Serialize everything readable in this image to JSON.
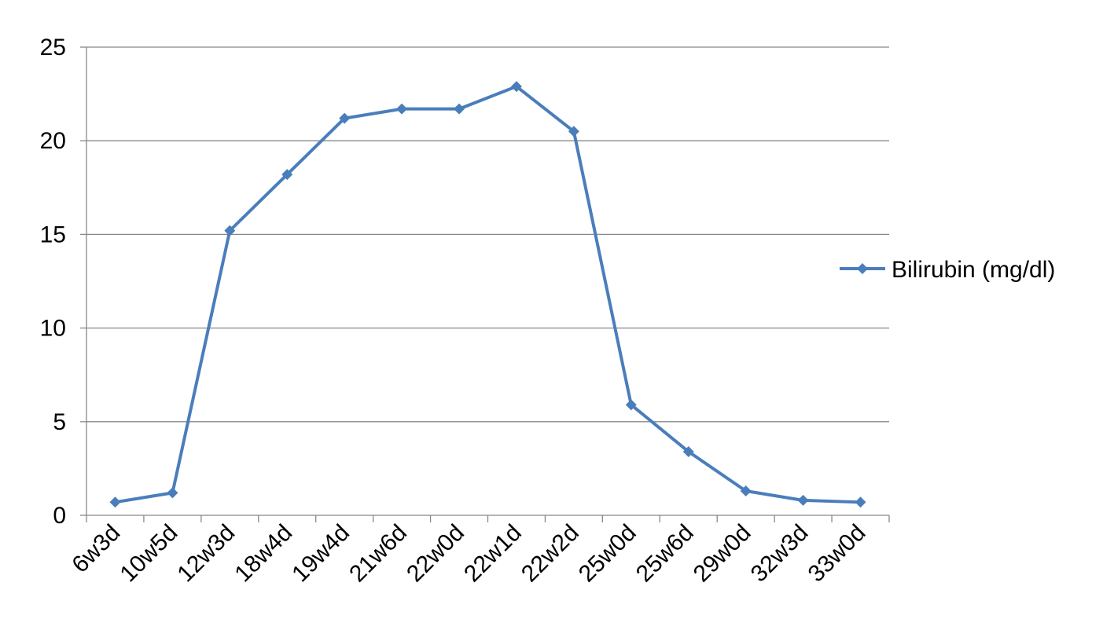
{
  "chart_data": {
    "type": "line",
    "title": "",
    "xlabel": "",
    "ylabel": "",
    "categories": [
      "6w3d",
      "10w5d",
      "12w3d",
      "18w4d",
      "19w4d",
      "21w6d",
      "22w0d",
      "22w1d",
      "22w2d",
      "25w0d",
      "25w6d",
      "29w0d",
      "32w3d",
      "33w0d"
    ],
    "series": [
      {
        "name": "Bilirubin (mg/dl)",
        "values": [
          0.7,
          1.2,
          15.2,
          18.2,
          21.2,
          21.7,
          21.7,
          22.9,
          20.5,
          5.9,
          3.4,
          1.3,
          0.8,
          0.7
        ],
        "color": "#4a7ebb",
        "marker": "diamond"
      }
    ],
    "ylim": [
      0,
      25
    ],
    "yticks": [
      0,
      5,
      10,
      15,
      20,
      25
    ],
    "grid": true,
    "legend_position": "right",
    "colors": {
      "grid": "#888888",
      "axis": "#888888",
      "text": "#000000"
    }
  }
}
